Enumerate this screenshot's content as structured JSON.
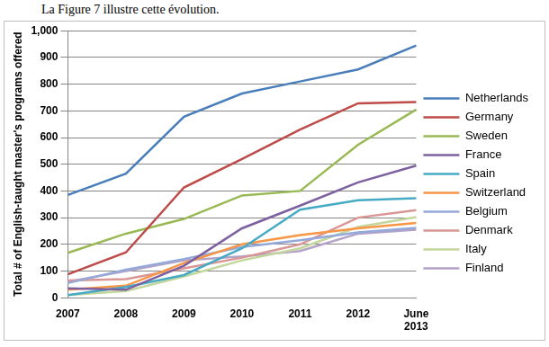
{
  "caption": "La Figure 7 illustre cette évolution.",
  "chart_data": {
    "type": "line",
    "y_label": "Total # of English-taught master's programs offered",
    "categories": [
      "2007",
      "2008",
      "2009",
      "2010",
      "2011",
      "2012",
      "June 2013"
    ],
    "series": [
      {
        "name": "Netherlands",
        "color": "#4a7ebb",
        "values": [
          385,
          465,
          678,
          765,
          810,
          855,
          945
        ]
      },
      {
        "name": "Germany",
        "color": "#be4b48",
        "values": [
          88,
          170,
          413,
          520,
          630,
          728,
          733
        ]
      },
      {
        "name": "Sweden",
        "color": "#98b954",
        "values": [
          168,
          240,
          295,
          383,
          400,
          573,
          705
        ]
      },
      {
        "name": "France",
        "color": "#7d60a0",
        "values": [
          35,
          30,
          120,
          260,
          345,
          432,
          495
        ]
      },
      {
        "name": "Spain",
        "color": "#46aac5",
        "values": [
          10,
          40,
          85,
          185,
          330,
          365,
          373
        ]
      },
      {
        "name": "Switzerland",
        "color": "#f79646",
        "values": [
          30,
          45,
          130,
          200,
          235,
          260,
          280
        ]
      },
      {
        "name": "Belgium",
        "color": "#94a9d9",
        "values": [
          55,
          105,
          145,
          190,
          215,
          245,
          262
        ]
      },
      {
        "name": "Denmark",
        "color": "#d99694",
        "values": [
          65,
          70,
          110,
          150,
          200,
          300,
          328
        ]
      },
      {
        "name": "Italy",
        "color": "#c3d69b",
        "values": [
          10,
          25,
          80,
          140,
          185,
          265,
          302
        ]
      },
      {
        "name": "Finland",
        "color": "#b3a2c7",
        "values": [
          60,
          100,
          140,
          155,
          175,
          240,
          255
        ]
      }
    ],
    "ylim": [
      0,
      1000
    ],
    "yticks": [
      0,
      100,
      200,
      300,
      400,
      500,
      600,
      700,
      800,
      900,
      {
        "value": 1000,
        "label": "1,000"
      }
    ],
    "grid": true,
    "legend": "right"
  }
}
